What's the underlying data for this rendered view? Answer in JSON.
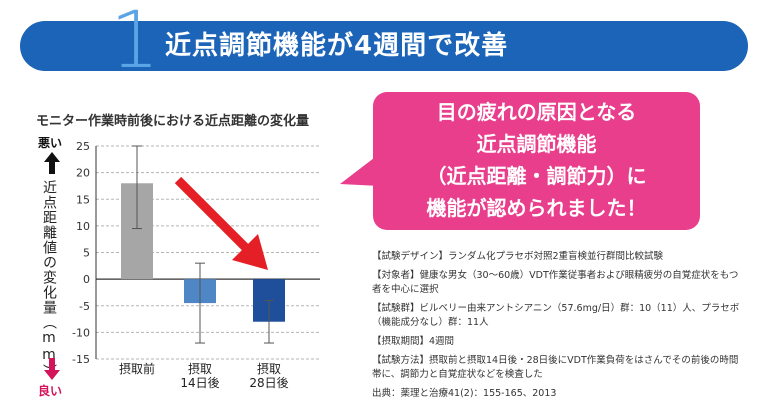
{
  "banner": {
    "number": "1",
    "title": "近点調節機能が4週間で改善"
  },
  "chart_side": {
    "bad": "悪い",
    "good": "良い"
  },
  "callout": {
    "lines": [
      "目の疲れの原因となる",
      "近点調節機能",
      "（近点距離・調節力）に",
      "機能が認められました！"
    ]
  },
  "info": [
    "【試験デザイン】ランダム化プラセボ対照2重盲検並行群間比較試験",
    "【対象者】健康な男女（30〜60歳）VDT作業従事者および眼精疲労の自覚症状をもつ者を中心に選択",
    "【試験群】ビルベリー由来アントシアニン（57.6mg/日）群：10（11）人、プラセボ（機能成分なし）群：11人",
    "【摂取期間】4週間",
    "【試験方法】摂取前と摂取14日後・28日後にVDT作業負荷をはさんでその前後の時間帯に、調節力と自覚症状などを検査した",
    "出典：薬理と治療41(2)：155-165、2013"
  ],
  "colors": {
    "banner": "#1b64b8",
    "accent_number": "#5ba5e6",
    "callout": "#e83e8c",
    "bar_before": "#a6a6a6",
    "bar_14": "#4f86c6",
    "bar_28": "#1f4e9a",
    "arrow": "#e51f26",
    "good": "#d4145a"
  },
  "chart_data": {
    "type": "bar",
    "title": "モニター作業時前後における近点距離の変化量",
    "ylabel": "近点距離値の変化量（mm）",
    "categories": [
      "摂取前",
      "摂取\n14日後",
      "摂取\n28日後"
    ],
    "values": [
      18,
      -4.5,
      -8
    ],
    "error_low": [
      9.5,
      -12,
      -12
    ],
    "error_high": [
      25,
      3,
      -4
    ],
    "ylim": [
      -15,
      25
    ],
    "yticks": [
      25,
      20,
      15,
      10,
      5,
      0,
      -5,
      -10,
      -15
    ],
    "grid": true
  }
}
